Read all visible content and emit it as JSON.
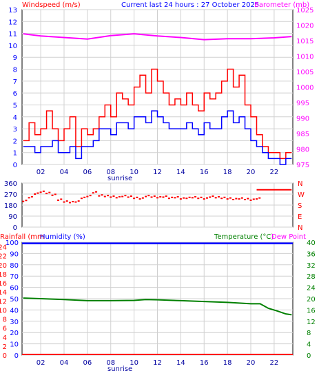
{
  "header": {
    "windspeed_label": "Windspeed (m/s)",
    "title": "Current last 24 hours : 27 October 2025",
    "barometer_label": "Barometer (mb)"
  },
  "labels": {
    "sunrise": "sunrise",
    "rainfall": "Rainfall (mm",
    "humidity": "Humidity (%)",
    "temperature": "Temperature (°C)",
    "dewpoint": "Dew Point"
  },
  "colors": {
    "wind_gust": "#ff0000",
    "wind_avg": "#0000ff",
    "barometer": "#ff00ff",
    "direction": "#ff0000",
    "rain": "#ff0000",
    "humidity": "#0000ff",
    "temperature": "#008000",
    "grid": "#d0d0d0"
  },
  "x_ticks": [
    "02",
    "04",
    "06",
    "08",
    "10",
    "12",
    "14",
    "16",
    "18",
    "20",
    "22"
  ],
  "chart_data": [
    {
      "type": "line",
      "name": "wind-barometer",
      "x_range_hours": [
        0.4,
        23.6
      ],
      "y_left": {
        "label": "Windspeed (m/s)",
        "ylim": [
          0,
          13
        ],
        "ticks": [
          0,
          1,
          2,
          3,
          4,
          5,
          6,
          7,
          8,
          9,
          10,
          11,
          12,
          13
        ]
      },
      "y_right": {
        "label": "Barometer (mb)",
        "ylim": [
          975,
          1025
        ],
        "ticks": [
          975,
          980,
          985,
          990,
          995,
          1000,
          1005,
          1010,
          1015,
          1020,
          1025
        ]
      },
      "series": [
        {
          "name": "gust",
          "x": [
            0.5,
            1,
            1.5,
            2,
            2.5,
            3,
            3.5,
            4,
            4.5,
            5,
            5.5,
            6,
            6.5,
            7,
            7.5,
            8,
            8.5,
            9,
            9.5,
            10,
            10.5,
            11,
            11.5,
            12,
            12.5,
            13,
            13.5,
            14,
            14.5,
            15,
            15.5,
            16,
            16.5,
            17,
            17.5,
            18,
            18.5,
            19,
            19.5,
            20,
            20.5,
            21,
            21.5,
            22,
            22.5,
            23,
            23.5
          ],
          "values": [
            2,
            3.5,
            2.5,
            3,
            4.5,
            3,
            2,
            3,
            4,
            1.5,
            3,
            2.5,
            3,
            4,
            5,
            4,
            6,
            5.5,
            5,
            6.5,
            7.5,
            6,
            8,
            7,
            6,
            5,
            5.5,
            5,
            6,
            5,
            4.5,
            6,
            5.5,
            6,
            7,
            8,
            6.5,
            7.5,
            5,
            4,
            2.5,
            1.5,
            1,
            1,
            0.5,
            1,
            1
          ]
        },
        {
          "name": "average",
          "x": [
            0.5,
            1,
            1.5,
            2,
            2.5,
            3,
            3.5,
            4,
            4.5,
            5,
            5.5,
            6,
            6.5,
            7,
            7.5,
            8,
            8.5,
            9,
            9.5,
            10,
            10.5,
            11,
            11.5,
            12,
            12.5,
            13,
            13.5,
            14,
            14.5,
            15,
            15.5,
            16,
            16.5,
            17,
            17.5,
            18,
            18.5,
            19,
            19.5,
            20,
            20.5,
            21,
            21.5,
            22,
            22.5,
            23,
            23.5
          ],
          "values": [
            1.5,
            1.5,
            1,
            1.5,
            1.5,
            2,
            1,
            1,
            1.5,
            0.5,
            1.5,
            1.5,
            2,
            3,
            3,
            2.5,
            3.5,
            3.5,
            3,
            4,
            4,
            3.5,
            4.5,
            4,
            3.5,
            3,
            3,
            3,
            3.5,
            3,
            2.5,
            3.5,
            3,
            3,
            4,
            4.5,
            3.5,
            4,
            3,
            2,
            1.5,
            1,
            0.5,
            0.5,
            0,
            0.5,
            0.5
          ]
        },
        {
          "name": "barometer",
          "x": [
            0.5,
            2,
            4,
            6,
            8,
            10,
            12,
            14,
            16,
            18,
            20,
            22,
            23.5
          ],
          "values": [
            1017.2,
            1016.5,
            1016.0,
            1015.5,
            1016.6,
            1017.2,
            1016.5,
            1016.0,
            1015.3,
            1015.6,
            1015.6,
            1015.9,
            1016.3
          ]
        }
      ]
    },
    {
      "type": "scatter",
      "name": "wind-direction",
      "y_left": {
        "ylim": [
          0,
          360
        ],
        "ticks": [
          0,
          90,
          180,
          270,
          360
        ]
      },
      "y_right_labels": [
        "N",
        "E",
        "S",
        "W",
        "N"
      ],
      "x": [
        0.5,
        1,
        1.5,
        2,
        2.5,
        3,
        3.5,
        4,
        4.5,
        5,
        5.5,
        6,
        6.5,
        7,
        7.5,
        8,
        8.5,
        9,
        9.5,
        10,
        10.5,
        11,
        11.5,
        12,
        12.5,
        13,
        13.5,
        14,
        14.5,
        15,
        15.5,
        16,
        16.5,
        17,
        17.5,
        18,
        18.5,
        19,
        19.5,
        20,
        20.5
      ],
      "values": [
        210,
        240,
        270,
        285,
        275,
        260,
        220,
        205,
        200,
        205,
        235,
        250,
        280,
        255,
        250,
        245,
        240,
        250,
        245,
        235,
        230,
        250,
        245,
        240,
        245,
        235,
        240,
        230,
        235,
        240,
        235,
        230,
        245,
        240,
        235,
        230,
        225,
        230,
        225,
        220,
        230
      ],
      "line_after": {
        "x": [
          20.5,
          23.5
        ],
        "value": 305
      }
    },
    {
      "type": "line",
      "name": "humidity-temperature",
      "y_left_humidity": {
        "ylim": [
          0,
          100
        ],
        "ticks": [
          0,
          10,
          20,
          30,
          40,
          50,
          60,
          70,
          80,
          90,
          100
        ]
      },
      "y_left_rain": {
        "ylim": [
          0,
          25
        ],
        "ticks": [
          0,
          2,
          4,
          6,
          8,
          10,
          12,
          14,
          16,
          18,
          20,
          22,
          24
        ]
      },
      "y_right": {
        "label": "Temperature (°C)",
        "ylim": [
          0,
          40
        ],
        "ticks": [
          0,
          4,
          8,
          12,
          16,
          20,
          24,
          28,
          32,
          36,
          40
        ]
      },
      "series": [
        {
          "name": "humidity",
          "x": [
            0.4,
            23.6
          ],
          "values": [
            99,
            99
          ]
        },
        {
          "name": "rainfall",
          "x": [
            0.4,
            23.6
          ],
          "values": [
            0,
            0
          ]
        },
        {
          "name": "temperature",
          "x": [
            0.5,
            2,
            4,
            6,
            8,
            10,
            11,
            12,
            14,
            16,
            18,
            20,
            20.8,
            21.5,
            22.3,
            23,
            23.5
          ],
          "values": [
            20.2,
            20,
            19.7,
            19.3,
            19.3,
            19.4,
            19.7,
            19.6,
            19.3,
            19,
            18.7,
            18.2,
            18.2,
            16.6,
            15.6,
            14.6,
            14.3
          ]
        }
      ]
    }
  ]
}
